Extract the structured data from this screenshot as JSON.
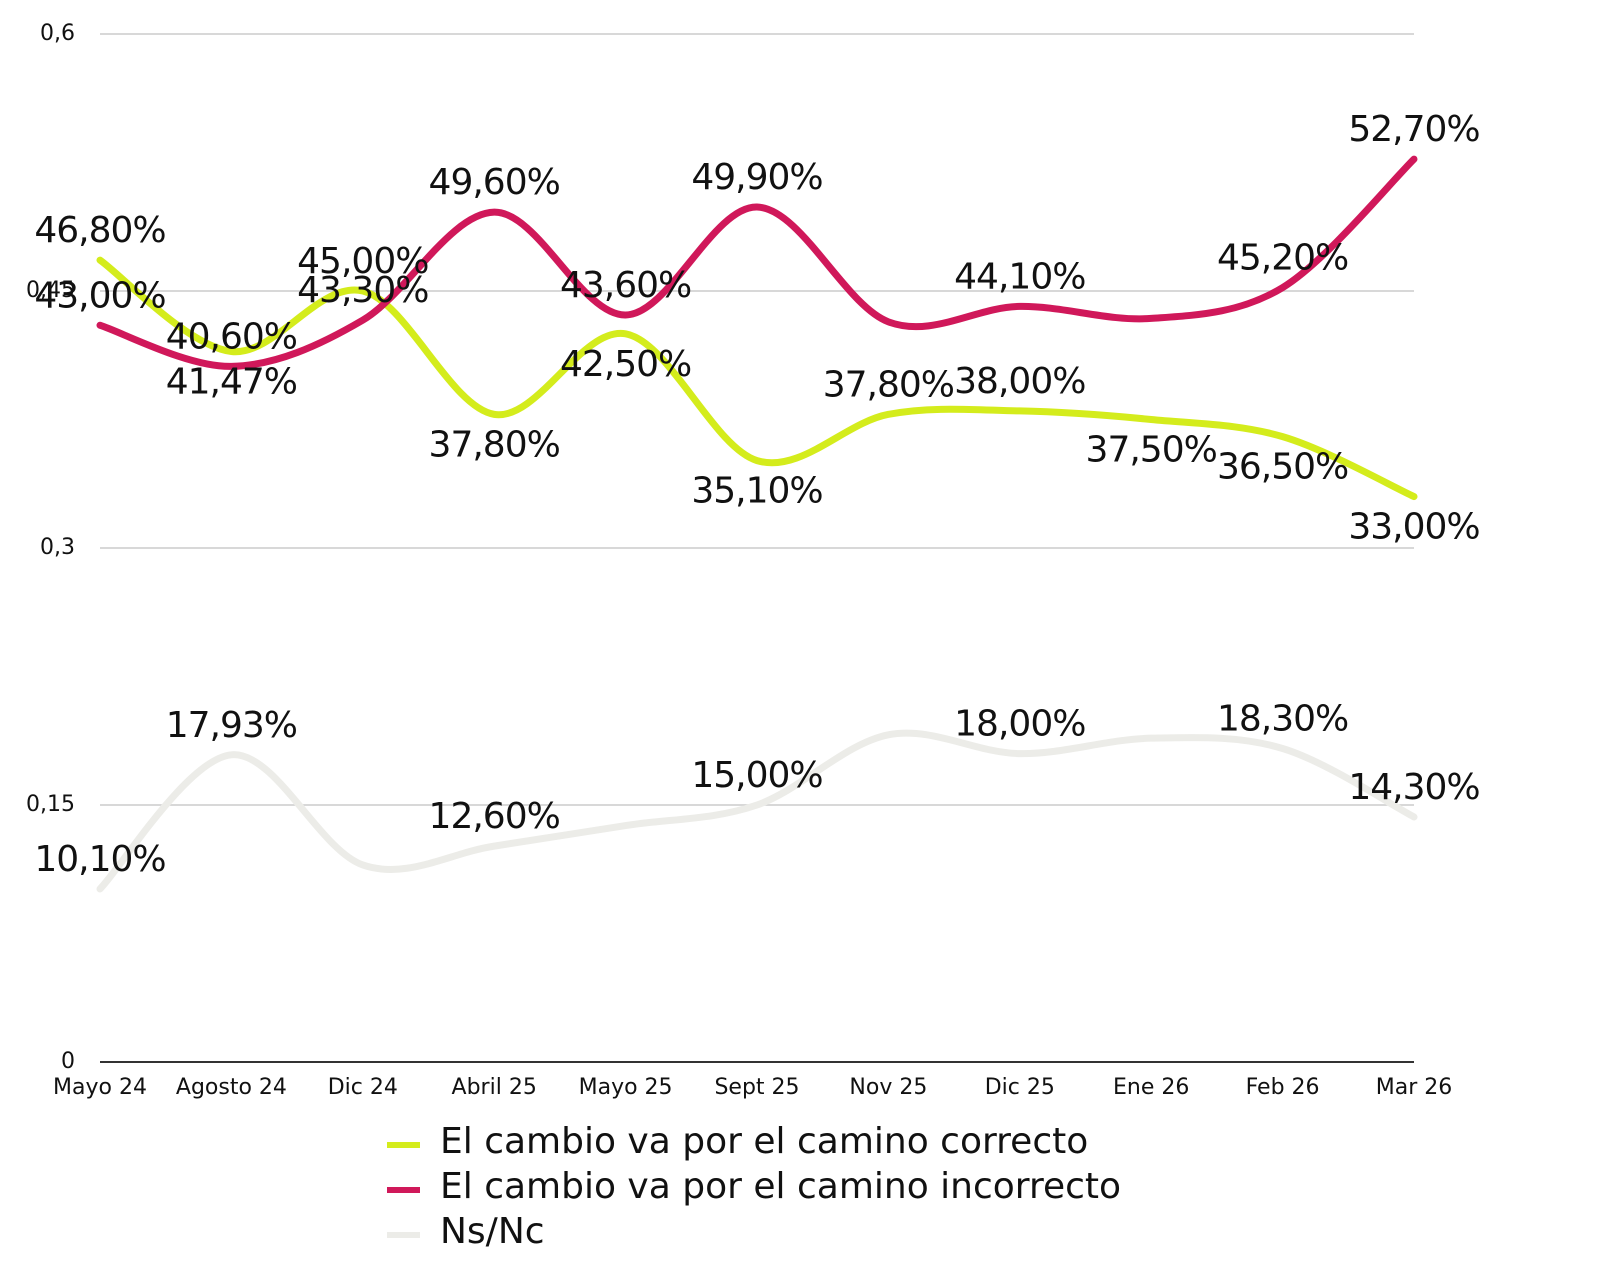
{
  "chart_data": {
    "type": "line",
    "categories": [
      "Mayo 24",
      "Agosto 24",
      "Dic 24",
      "Abril 25",
      "Mayo 25",
      "Sept 25",
      "Nov 25",
      "Dic 25",
      "Ene 26",
      "Feb 26",
      "Mar 26"
    ],
    "ylim": [
      0,
      0.6
    ],
    "yticks": [
      0,
      {
        "value": 0.15,
        "label": "0,15"
      },
      {
        "value": 0.3,
        "label": "0,3"
      },
      {
        "value": 0.45,
        "label": "0,45"
      },
      {
        "value": 0.6,
        "label": "0,6"
      }
    ],
    "grid": true,
    "series": [
      {
        "name": "El cambio va por el camino correcto",
        "color": "#d4ec1c",
        "values": [
          0.468,
          0.4147,
          0.45,
          0.378,
          0.425,
          0.351,
          0.378,
          0.38,
          0.375,
          0.365,
          0.33
        ],
        "value_labels": [
          "46,80%",
          "41,47%",
          "45,00%",
          "37,80%",
          "42,50%",
          "35,10%",
          "37,80%",
          "38,00%",
          "37,50%",
          "36,50%",
          "33,00%"
        ]
      },
      {
        "name": "El cambio va por el camino incorrecto",
        "color": "#d0185a",
        "values": [
          0.43,
          0.406,
          0.433,
          0.496,
          0.436,
          0.499,
          0.432,
          0.441,
          0.434,
          0.452,
          0.527
        ],
        "value_labels": [
          "43,00%",
          "40,60%",
          "43,30%",
          "49,60%",
          "43,60%",
          "49,90%",
          null,
          "44,10%",
          null,
          "45,20%",
          "52,70%"
        ]
      },
      {
        "name": "Ns/Nc",
        "color": "#ecece8",
        "values": [
          0.101,
          0.1793,
          0.115,
          0.126,
          0.138,
          0.15,
          0.191,
          0.18,
          0.189,
          0.183,
          0.143
        ],
        "value_labels": [
          "10,10%",
          "17,93%",
          null,
          "12,60%",
          null,
          "15,00%",
          null,
          "18,00%",
          null,
          "18,30%",
          "14,30%"
        ]
      }
    ]
  }
}
